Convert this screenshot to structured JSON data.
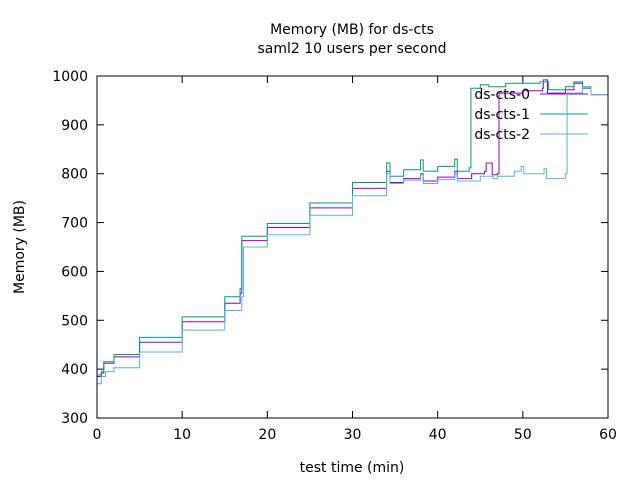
{
  "chart_data": {
    "type": "line",
    "title": "Memory (MB) for ds-cts",
    "subtitle": "saml2 10 users per second",
    "xlabel": "test time (min)",
    "ylabel": "Memory (MB)",
    "xlim": [
      0,
      60
    ],
    "ylim": [
      300,
      1000
    ],
    "xticks": [
      0,
      10,
      20,
      30,
      40,
      50,
      60
    ],
    "yticks": [
      300,
      400,
      500,
      600,
      700,
      800,
      900,
      1000
    ],
    "grid": false,
    "legend_position": "top-right",
    "series": [
      {
        "name": "ds-cts-0",
        "color": "#9400d3",
        "points": [
          [
            0,
            385
          ],
          [
            0.5,
            392
          ],
          [
            0.8,
            412
          ],
          [
            2,
            425
          ],
          [
            5,
            455
          ],
          [
            10,
            497
          ],
          [
            15,
            535
          ],
          [
            16.8,
            555
          ],
          [
            17,
            663
          ],
          [
            20,
            690
          ],
          [
            25,
            730
          ],
          [
            30,
            770
          ],
          [
            34,
            805
          ],
          [
            34.4,
            782
          ],
          [
            36,
            790
          ],
          [
            38,
            800
          ],
          [
            38.3,
            785
          ],
          [
            40,
            793
          ],
          [
            42,
            805
          ],
          [
            42.3,
            790
          ],
          [
            44,
            800
          ],
          [
            45.5,
            805
          ],
          [
            45.7,
            822
          ],
          [
            46.2,
            822
          ],
          [
            46.4,
            798
          ],
          [
            47,
            800
          ],
          [
            47.2,
            965
          ],
          [
            50,
            970
          ],
          [
            52.3,
            975
          ],
          [
            52.4,
            992
          ],
          [
            52.8,
            992
          ],
          [
            52.9,
            965
          ],
          [
            55,
            972
          ],
          [
            56,
            985
          ],
          [
            57,
            978
          ],
          [
            58,
            962
          ],
          [
            60,
            985
          ]
        ]
      },
      {
        "name": "ds-cts-1",
        "color": "#009e73",
        "points": [
          [
            0,
            388
          ],
          [
            0.5,
            395
          ],
          [
            0.8,
            415
          ],
          [
            2,
            430
          ],
          [
            5,
            465
          ],
          [
            10,
            507
          ],
          [
            15,
            548
          ],
          [
            16.8,
            565
          ],
          [
            17,
            672
          ],
          [
            20,
            698
          ],
          [
            25,
            740
          ],
          [
            30,
            782
          ],
          [
            34,
            822
          ],
          [
            34.4,
            795
          ],
          [
            36,
            808
          ],
          [
            38,
            828
          ],
          [
            38.3,
            805
          ],
          [
            40,
            815
          ],
          [
            42,
            830
          ],
          [
            42.3,
            805
          ],
          [
            43.7,
            812
          ],
          [
            43.9,
            975
          ],
          [
            45,
            982
          ],
          [
            46,
            978
          ],
          [
            48,
            985
          ],
          [
            50,
            985
          ],
          [
            52,
            988
          ],
          [
            53,
            972
          ],
          [
            55,
            978
          ],
          [
            56,
            988
          ],
          [
            57,
            975
          ],
          [
            58,
            962
          ],
          [
            60,
            988
          ]
        ]
      },
      {
        "name": "ds-cts-2",
        "color": "#56b4e9",
        "points": [
          [
            0,
            370
          ],
          [
            0.5,
            385
          ],
          [
            1,
            395
          ],
          [
            2,
            403
          ],
          [
            5,
            435
          ],
          [
            10,
            480
          ],
          [
            15,
            520
          ],
          [
            17,
            548
          ],
          [
            17.2,
            650
          ],
          [
            20,
            675
          ],
          [
            25,
            715
          ],
          [
            30,
            755
          ],
          [
            34,
            800
          ],
          [
            34.4,
            780
          ],
          [
            36,
            787
          ],
          [
            38,
            798
          ],
          [
            38.3,
            780
          ],
          [
            40,
            788
          ],
          [
            42,
            800
          ],
          [
            42.3,
            785
          ],
          [
            45,
            795
          ],
          [
            46.5,
            790
          ],
          [
            47,
            795
          ],
          [
            49,
            805
          ],
          [
            49.8,
            815
          ],
          [
            50.1,
            800
          ],
          [
            52.5,
            810
          ],
          [
            52.8,
            790
          ],
          [
            55,
            800
          ],
          [
            55.2,
            965
          ],
          [
            57,
            978
          ],
          [
            58,
            962
          ],
          [
            60,
            985
          ]
        ]
      }
    ]
  }
}
